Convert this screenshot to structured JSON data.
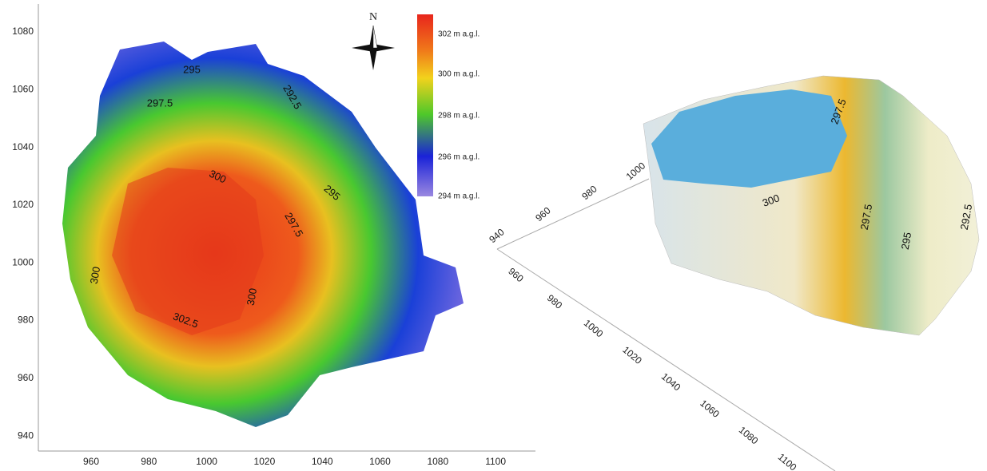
{
  "left_map": {
    "north_label": "N",
    "y_ticks": [
      1080,
      1060,
      1040,
      1020,
      1000,
      980,
      960,
      940
    ],
    "x_ticks": [
      960,
      980,
      1000,
      1020,
      1040,
      1060,
      1080,
      1100
    ],
    "legend": [
      "302 m a.g.l.",
      "300 m a.g.l.",
      "298 m a.g.l.",
      "296 m a.g.l.",
      "294 m a.g.l."
    ],
    "contour_labels": [
      "295",
      "292.5",
      "297.5",
      "300",
      "295",
      "297.5",
      "300",
      "300",
      "302.5"
    ]
  },
  "right_view": {
    "axis_a_ticks": [
      940,
      960,
      980,
      1000
    ],
    "axis_b_ticks": [
      960,
      980,
      1000,
      1020,
      1040,
      1060,
      1080,
      1100
    ],
    "contour_labels": [
      "300",
      "297.5",
      "295",
      "292.5",
      "297.5"
    ]
  }
}
